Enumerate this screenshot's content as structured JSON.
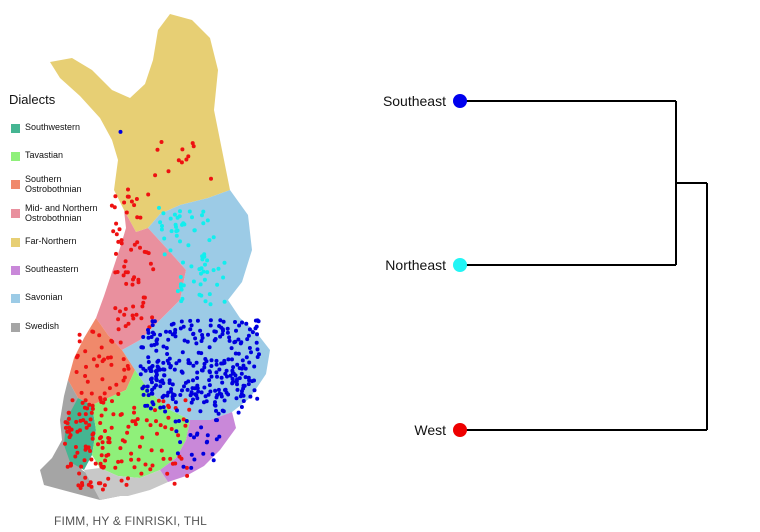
{
  "legend": {
    "title": "Dialects",
    "items": [
      {
        "label": "Southwestern",
        "color": "#45b592"
      },
      {
        "label": "Tavastian",
        "color": "#8ff07a"
      },
      {
        "label": "Southern Ostrobothnian",
        "color": "#f0896b"
      },
      {
        "label": "Mid- and Northern Ostrobothnian",
        "color": "#e9909e"
      },
      {
        "label": "Far-Northern",
        "color": "#e7cf74"
      },
      {
        "label": "Southeastern",
        "color": "#c988d9"
      },
      {
        "label": "Savonian",
        "color": "#9ccbe6"
      },
      {
        "label": "Swedish",
        "color": "#a5a5a5"
      }
    ]
  },
  "credit": "FIMM, HY & FINRISKI, THL",
  "dendrogram": {
    "leaves": [
      {
        "label": "Southeast",
        "color": "#0000ee"
      },
      {
        "label": "Northeast",
        "color": "#22f5f5"
      },
      {
        "label": "West",
        "color": "#ee0000"
      }
    ]
  },
  "colors": {
    "west_points": "#ee1111",
    "southeast_points": "#0000dd",
    "northeast_points": "#11eeee"
  }
}
